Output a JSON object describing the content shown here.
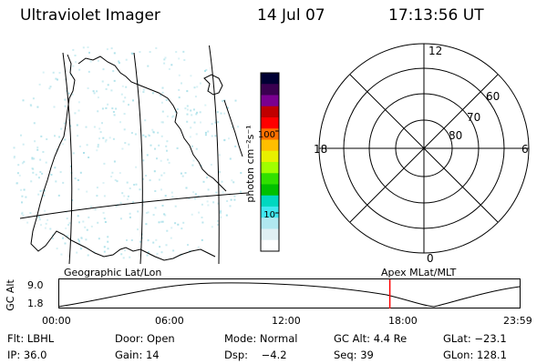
{
  "header": {
    "title": "Ultraviolet Imager",
    "date": "14 Jul 07",
    "time": "17:13:56 UT"
  },
  "colorbar": {
    "unit_label": "photon cm⁻²s⁻¹",
    "ticks": [
      "100",
      "10"
    ],
    "colors": [
      "#000033",
      "#3a0050",
      "#7a0090",
      "#c00000",
      "#ff0000",
      "#ff7000",
      "#ffbf00",
      "#e8f000",
      "#a0ff00",
      "#30e000",
      "#00c000",
      "#00d8c0",
      "#40e8f0",
      "#b0e8f0",
      "#e0f0f4",
      "#ffffff"
    ]
  },
  "polar_plot": {
    "ring_labels": [
      "60",
      "70",
      "80"
    ],
    "hour_labels": {
      "top": "12",
      "left": "18",
      "right": "6",
      "bottom": "0"
    }
  },
  "timeline": {
    "label_left": "Geographic Lat/Lon",
    "label_right": "Apex MLat/MLT",
    "y_axis_label": "GC Alt",
    "y_ticks": [
      "9.0",
      "1.8"
    ],
    "x_ticks": [
      "00:00",
      "06:00",
      "12:00",
      "18:00",
      "23:59"
    ],
    "marker_time": "17:13:56",
    "marker_color": "#ff0000"
  },
  "footer": {
    "row1": [
      "Flt: LBHL",
      "Door: Open",
      "Mode: Normal",
      "GC Alt: 4.4 Re",
      "GLat: −23.1"
    ],
    "row2": [
      "IP: 36.0",
      "Gain: 14",
      "Dsp:    −4.2",
      "Seq: 39",
      "GLon: 128.1"
    ]
  }
}
